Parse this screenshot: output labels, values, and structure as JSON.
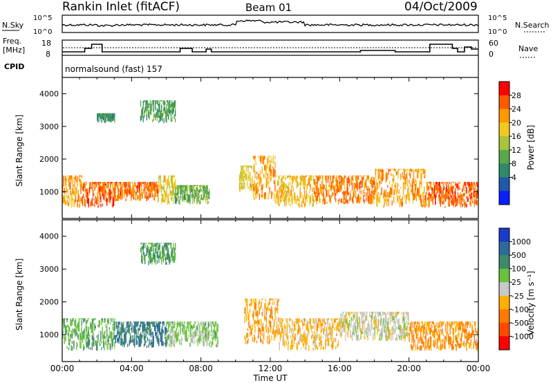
{
  "header": {
    "station": "Rankin Inlet (fitACF)",
    "beam": "Beam 01",
    "date": "04/Oct/2009"
  },
  "noise_panel": {
    "left_label": "N.Sky",
    "right_label": "N.Search",
    "left_ticks": [
      "10^5",
      "10^0"
    ],
    "right_ticks": [
      "10^5",
      "10^0"
    ]
  },
  "freq_panel": {
    "left_label_line1": "Freq.",
    "left_label_line2": "[MHz]",
    "left_ticks": [
      "18",
      "8"
    ],
    "right_label": "Nave",
    "right_ticks": [
      "60",
      "0"
    ]
  },
  "cpid_panel": {
    "label": "CPID",
    "program": "normalsound (fast) 157"
  },
  "colorbars": {
    "power": {
      "title": "Power [dB]",
      "ticks": [
        "28",
        "24",
        "20",
        "16",
        "12",
        "8",
        "4"
      ],
      "colors": [
        "#ff0000",
        "#ff5a00",
        "#ff9900",
        "#f2c91e",
        "#a8c43a",
        "#5aa84a",
        "#2e8a6a",
        "#1f5aa8",
        "#0a1eff"
      ]
    },
    "velocity": {
      "title": "Velocity [m s⁻¹]",
      "ticks": [
        "1000",
        "500",
        "100",
        "25",
        "-25",
        "-100",
        "-500",
        "-1000"
      ],
      "colors": [
        "#1a3cc8",
        "#2e6a9a",
        "#3f8a6a",
        "#69c23c",
        "#c8c8c8",
        "#ffb000",
        "#ff7a00",
        "#ff4a00",
        "#ff0000"
      ]
    }
  },
  "chart_data": [
    {
      "type": "heatmap",
      "title": "Power",
      "xlabel": "Time UT",
      "ylabel": "Slant Range [km]",
      "x_tick_labels": [
        "00:00",
        "04:00",
        "08:00",
        "12:00",
        "16:00",
        "20:00",
        "00:00"
      ],
      "y_tick_labels": [
        "4000",
        "3000",
        "2000",
        "1000"
      ],
      "xlim_hours": [
        0,
        24
      ],
      "ylim_km": [
        180,
        4500
      ],
      "colorbar_title": "Power [dB]",
      "colorbar_range": [
        0,
        30
      ],
      "scatter_regions": [
        {
          "t_start": 0.0,
          "t_end": 1.2,
          "r_low": 500,
          "r_high": 1500,
          "value": 22
        },
        {
          "t_start": 1.2,
          "t_end": 3.0,
          "r_low": 500,
          "r_high": 1300,
          "value": 26
        },
        {
          "t_start": 3.0,
          "t_end": 5.5,
          "r_low": 700,
          "r_high": 1300,
          "value": 25
        },
        {
          "t_start": 5.5,
          "t_end": 6.5,
          "r_low": 600,
          "r_high": 1500,
          "value": 18
        },
        {
          "t_start": 6.5,
          "t_end": 8.5,
          "r_low": 600,
          "r_high": 1200,
          "value": 12
        },
        {
          "t_start": 10.2,
          "t_end": 11.0,
          "r_low": 1000,
          "r_high": 1800,
          "value": 18
        },
        {
          "t_start": 11.0,
          "t_end": 12.3,
          "r_low": 700,
          "r_high": 2100,
          "value": 22
        },
        {
          "t_start": 12.3,
          "t_end": 14.5,
          "r_low": 500,
          "r_high": 1500,
          "value": 20
        },
        {
          "t_start": 14.5,
          "t_end": 18.0,
          "r_low": 600,
          "r_high": 1500,
          "value": 24
        },
        {
          "t_start": 18.0,
          "t_end": 21.0,
          "r_low": 500,
          "r_high": 1700,
          "value": 22
        },
        {
          "t_start": 21.0,
          "t_end": 24.0,
          "r_low": 500,
          "r_high": 1300,
          "value": 26
        },
        {
          "t_start": 4.5,
          "t_end": 6.5,
          "r_low": 3100,
          "r_high": 3800,
          "value": 10
        },
        {
          "t_start": 2.0,
          "t_end": 3.0,
          "r_low": 3100,
          "r_high": 3400,
          "value": 8
        }
      ]
    },
    {
      "type": "heatmap",
      "title": "Velocity",
      "xlabel": "Time UT",
      "ylabel": "Slant Range [km]",
      "x_tick_labels": [
        "00:00",
        "04:00",
        "08:00",
        "12:00",
        "16:00",
        "20:00",
        "00:00"
      ],
      "y_tick_labels": [
        "4000",
        "3000",
        "2000",
        "1000"
      ],
      "xlim_hours": [
        0,
        24
      ],
      "ylim_km": [
        180,
        4500
      ],
      "colorbar_title": "Velocity [m s⁻¹]",
      "colorbar_range": [
        -1000,
        1000
      ],
      "scatter_regions": [
        {
          "t_start": 0.0,
          "t_end": 3.0,
          "r_low": 500,
          "r_high": 1500,
          "value": 300
        },
        {
          "t_start": 3.0,
          "t_end": 6.0,
          "r_low": 600,
          "r_high": 1400,
          "value": 600
        },
        {
          "t_start": 6.0,
          "t_end": 9.0,
          "r_low": 600,
          "r_high": 1400,
          "value": 200
        },
        {
          "t_start": 10.5,
          "t_end": 12.5,
          "r_low": 700,
          "r_high": 2100,
          "value": -300
        },
        {
          "t_start": 12.5,
          "t_end": 16.0,
          "r_low": 500,
          "r_high": 1500,
          "value": -200
        },
        {
          "t_start": 16.0,
          "t_end": 20.0,
          "r_low": 800,
          "r_high": 1700,
          "value": 0
        },
        {
          "t_start": 20.0,
          "t_end": 24.0,
          "r_low": 500,
          "r_high": 1400,
          "value": -400
        },
        {
          "t_start": 4.5,
          "t_end": 6.5,
          "r_low": 3100,
          "r_high": 3800,
          "value": 400
        }
      ]
    }
  ]
}
